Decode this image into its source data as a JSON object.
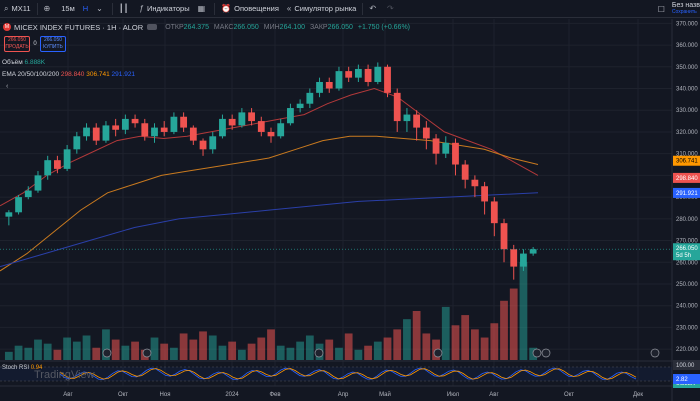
{
  "toolbar": {
    "symbol": "MX11",
    "interval": "15м",
    "indicators_label": "Индикаторы",
    "alerts_label": "Оповещения",
    "replay_label": "Симулятор рынка",
    "unsaved_label": "Без назв",
    "unsaved_sub": "Сохранить"
  },
  "header": {
    "title": "MICEX INDEX FUTURES · 1H · ALOR",
    "open_label": "ОТКР",
    "open_value": "264.375",
    "high_label": "МАКС",
    "high_value": "266.050",
    "low_label": "МИН",
    "low_value": "264.100",
    "close_label": "ЗАКР",
    "close_value": "266.050",
    "change": "+1.750 (+0.66%)"
  },
  "trade": {
    "sell_price": "266.050",
    "sell_label": "ПРОДАТЬ",
    "spread": "0",
    "buy_price": "266.050",
    "buy_label": "КУПИТЬ"
  },
  "legend": {
    "volume_label": "Объём",
    "volume_value": "6.888K",
    "ema_label": "EMA 20/50/100/200",
    "ema1": "298.840",
    "ema2": "306.741",
    "ema3": "291.921",
    "stoch_label": "Stoch RSI",
    "stoch_value": "0.94"
  },
  "price_labels": {
    "current": "266.050",
    "countdown": "5d 5h",
    "ema_orange": "306.741",
    "ema_red": "298.840",
    "ema_blue": "291.921",
    "volume": "6.888K",
    "stoch_top": "100.00",
    "stoch_val": "2.82"
  },
  "watermark": "TradingView",
  "colors": {
    "up": "#26a69a",
    "down": "#ef5350",
    "ema_red": "#ef5350",
    "ema_orange": "#ff9800",
    "ema_blue": "#2962ff",
    "bg": "#131722"
  },
  "chart_data": {
    "type": "candlestick",
    "y_ticks": [
      "370.000",
      "360.000",
      "350.000",
      "340.000",
      "330.000",
      "320.000",
      "310.000",
      "300.000",
      "290.000",
      "280.000",
      "270.000",
      "260.000",
      "250.000",
      "240.000",
      "230.000",
      "220.000"
    ],
    "ylim": [
      215,
      372
    ],
    "x_ticks": [
      "Авг",
      "Окт",
      "Ноя",
      "2024",
      "Фев",
      "Апр",
      "Май",
      "Июл",
      "Авг",
      "Окт",
      "Дек"
    ],
    "candles": [
      [
        281,
        283,
        277,
        284
      ],
      [
        283,
        290,
        282,
        291
      ],
      [
        290,
        293,
        289,
        295
      ],
      [
        293,
        300,
        292,
        302
      ],
      [
        300,
        307,
        298,
        309
      ],
      [
        307,
        303,
        301,
        309
      ],
      [
        303,
        312,
        302,
        314
      ],
      [
        312,
        318,
        310,
        320
      ],
      [
        318,
        322,
        316,
        324
      ],
      [
        322,
        316,
        314,
        324
      ],
      [
        316,
        323,
        315,
        325
      ],
      [
        323,
        321,
        318,
        326
      ],
      [
        321,
        326,
        319,
        328
      ],
      [
        326,
        324,
        322,
        328
      ],
      [
        324,
        318,
        316,
        326
      ],
      [
        318,
        322,
        315,
        324
      ],
      [
        322,
        320,
        318,
        325
      ],
      [
        320,
        327,
        319,
        329
      ],
      [
        327,
        322,
        320,
        329
      ],
      [
        322,
        316,
        314,
        323
      ],
      [
        316,
        312,
        309,
        317
      ],
      [
        312,
        318,
        310,
        320
      ],
      [
        318,
        326,
        317,
        328
      ],
      [
        326,
        323,
        321,
        328
      ],
      [
        323,
        329,
        322,
        331
      ],
      [
        329,
        325,
        323,
        331
      ],
      [
        325,
        320,
        318,
        327
      ],
      [
        320,
        318,
        315,
        322
      ],
      [
        318,
        324,
        317,
        326
      ],
      [
        324,
        331,
        323,
        333
      ],
      [
        331,
        333,
        329,
        335
      ],
      [
        333,
        338,
        331,
        340
      ],
      [
        338,
        343,
        336,
        345
      ],
      [
        343,
        340,
        338,
        345
      ],
      [
        340,
        348,
        339,
        350
      ],
      [
        348,
        345,
        343,
        350
      ],
      [
        345,
        349,
        343,
        351
      ],
      [
        349,
        343,
        341,
        351
      ],
      [
        343,
        350,
        342,
        352
      ],
      [
        350,
        338,
        336,
        351
      ],
      [
        338,
        325,
        320,
        340
      ],
      [
        325,
        328,
        320,
        331
      ],
      [
        328,
        322,
        316,
        330
      ],
      [
        322,
        317,
        312,
        325
      ],
      [
        317,
        310,
        305,
        319
      ],
      [
        310,
        315,
        308,
        318
      ],
      [
        315,
        305,
        300,
        317
      ],
      [
        305,
        298,
        294,
        307
      ],
      [
        298,
        295,
        290,
        300
      ],
      [
        295,
        288,
        282,
        297
      ],
      [
        288,
        278,
        272,
        290
      ],
      [
        278,
        266,
        260,
        280
      ],
      [
        266,
        258,
        252,
        268
      ],
      [
        258,
        264,
        256,
        266
      ],
      [
        264,
        266,
        263,
        267
      ]
    ],
    "volume": [
      8,
      14,
      12,
      20,
      16,
      10,
      22,
      18,
      24,
      12,
      30,
      20,
      14,
      18,
      10,
      22,
      16,
      12,
      26,
      20,
      28,
      24,
      14,
      18,
      10,
      16,
      22,
      30,
      14,
      12,
      18,
      24,
      16,
      20,
      12,
      26,
      10,
      14,
      18,
      22,
      30,
      40,
      48,
      26,
      20,
      52,
      34,
      44,
      30,
      22,
      36,
      58,
      70,
      96,
      12
    ],
    "ema_series": {
      "ema20": [
        286,
        292,
        300,
        306,
        311,
        316,
        318,
        317,
        318,
        320,
        322,
        324,
        326,
        328,
        333,
        337,
        340,
        336,
        328,
        320,
        316,
        312,
        306,
        300
      ],
      "ema50": [
        256,
        264,
        274,
        284,
        292,
        296,
        300,
        302,
        304,
        306,
        308,
        312,
        316,
        318,
        318,
        317,
        316,
        314,
        312,
        308,
        305
      ],
      "ema100": [
        258,
        264,
        270,
        276,
        280,
        282,
        284,
        286,
        288,
        289,
        290,
        291,
        292
      ]
    }
  }
}
